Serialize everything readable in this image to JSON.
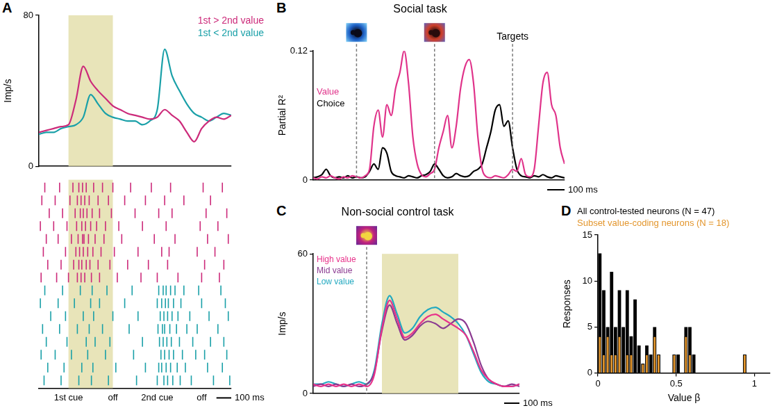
{
  "chart_data": [
    {
      "type": "line",
      "panel": "A",
      "y_label": "Imp/s",
      "x": [
        -200,
        -150,
        -100,
        -50,
        0,
        50,
        100,
        150,
        200,
        250,
        300,
        350,
        400,
        450,
        500,
        550,
        600,
        650,
        700,
        750,
        800,
        850,
        900,
        950,
        1000,
        1050,
        1100
      ],
      "series": [
        {
          "name": "1st > 2nd value",
          "color": "#cc2a7a",
          "values": [
            18,
            19,
            20,
            21,
            22,
            35,
            53,
            45,
            40,
            36,
            32,
            30,
            28,
            27,
            26,
            25,
            26,
            30,
            27,
            24,
            18,
            13,
            20,
            24,
            26,
            25,
            27
          ],
          "raster": [
            [
              -160,
              -60,
              30,
              70,
              95,
              120,
              170,
              230,
              300,
              420,
              560,
              690,
              910,
              1040
            ],
            [
              -180,
              -90,
              10,
              60,
              85,
              110,
              140,
              200,
              270,
              380,
              520,
              650,
              780,
              960
            ],
            [
              -130,
              -40,
              45,
              80,
              100,
              125,
              160,
              210,
              290,
              450,
              610,
              700,
              930,
              1070
            ],
            [
              -190,
              -100,
              -10,
              55,
              90,
              115,
              150,
              190,
              250,
              340,
              500,
              660,
              890,
              1010
            ],
            [
              -150,
              -70,
              20,
              65,
              95,
              105,
              135,
              180,
              240,
              360,
              580,
              720,
              940,
              1080
            ],
            [
              -170,
              -20,
              50,
              75,
              100,
              130,
              165,
              220,
              310,
              470,
              630,
              680,
              870,
              990
            ],
            [
              -140,
              -50,
              35,
              70,
              90,
              120,
              145,
              200,
              280,
              400,
              540,
              670,
              920,
              1050
            ],
            [
              -185,
              -80,
              0,
              60,
              85,
              110,
              155,
              210,
              330,
              490,
              600,
              740,
              900,
              1020
            ]
          ]
        },
        {
          "name": "1st < 2nd value",
          "color": "#1aa0a8",
          "values": [
            17,
            18,
            18,
            20,
            21,
            22,
            26,
            38,
            33,
            28,
            26,
            25,
            24,
            24,
            22,
            24,
            30,
            62,
            48,
            40,
            33,
            28,
            26,
            24,
            26,
            28,
            27
          ],
          "raster": [
            [
              -160,
              -40,
              80,
              160,
              260,
              430,
              610,
              640,
              660,
              690,
              720,
              780,
              880,
              1030
            ],
            [
              -190,
              -70,
              40,
              150,
              210,
              380,
              600,
              630,
              655,
              675,
              710,
              760,
              900,
              1060
            ],
            [
              -120,
              -20,
              100,
              170,
              300,
              470,
              620,
              645,
              670,
              700,
              740,
              820,
              950,
              1080
            ],
            [
              -175,
              -60,
              60,
              140,
              230,
              410,
              605,
              635,
              650,
              685,
              730,
              800,
              870,
              1010
            ],
            [
              -150,
              -10,
              120,
              180,
              280,
              500,
              615,
              640,
              665,
              695,
              750,
              840,
              960,
              1050
            ],
            [
              -185,
              -90,
              20,
              130,
              250,
              440,
              625,
              650,
              680,
              710,
              770,
              860,
              920,
              1070
            ],
            [
              -140,
              -30,
              90,
              165,
              320,
              520,
              610,
              630,
              660,
              690,
              735,
              790,
              940,
              1040
            ],
            [
              -165,
              -50,
              70,
              155,
              270,
              460,
              600,
              645,
              670,
              705,
              755,
              830,
              980,
              1090
            ]
          ]
        }
      ],
      "xlim": [
        -200,
        1100
      ],
      "xticks": [
        {
          "value": 0,
          "label": "1st cue"
        },
        {
          "value": 300,
          "label": "off"
        },
        {
          "value": 600,
          "label": "2nd cue"
        },
        {
          "value": 900,
          "label": "off"
        }
      ],
      "ylim": [
        0,
        80
      ],
      "yticks": [
        0,
        80
      ],
      "grid": false,
      "legend": "upper right",
      "shaded": [
        0,
        300
      ],
      "scale_bar": {
        "value": 100,
        "label": "100 ms"
      }
    },
    {
      "type": "line",
      "panel": "B",
      "title": "Social task",
      "y_label": "Partial R²",
      "x": [
        -250,
        -225,
        -200,
        -175,
        -150,
        -125,
        -100,
        -75,
        -50,
        -25,
        0,
        25,
        50,
        75,
        100,
        125,
        150,
        175,
        200,
        225,
        250,
        275,
        300,
        325,
        350,
        375,
        400,
        425,
        450,
        475,
        500,
        525,
        550,
        575,
        600,
        625,
        650,
        675,
        700,
        725,
        750,
        775,
        800,
        825,
        850,
        875,
        900,
        925,
        950,
        975,
        1000,
        1025,
        1050,
        1075,
        1100,
        1125,
        1150,
        1175,
        1200
      ],
      "series": [
        {
          "name": "Value",
          "color": "#e0338a",
          "values": [
            0.002,
            0.001,
            0.003,
            0.002,
            0.004,
            0.002,
            0.001,
            0.003,
            0.002,
            0.004,
            0.003,
            0.002,
            0.004,
            0.01,
            0.05,
            0.065,
            0.04,
            0.07,
            0.06,
            0.085,
            0.1,
            0.12,
            0.09,
            0.04,
            0.015,
            0.005,
            0.003,
            0.006,
            0.01,
            0.03,
            0.045,
            0.06,
            0.03,
            0.05,
            0.085,
            0.105,
            0.112,
            0.09,
            0.04,
            0.01,
            0.003,
            0.002,
            0.004,
            0.003,
            0.002,
            0.005,
            0.01,
            0.008,
            0.02,
            0.005,
            0.003,
            0.01,
            0.05,
            0.09,
            0.1,
            0.07,
            0.06,
            0.03,
            0.015
          ]
        },
        {
          "name": "Choice",
          "color": "#000000",
          "values": [
            0.002,
            0.003,
            0.005,
            0.01,
            0.004,
            0.002,
            0.003,
            0.002,
            0.004,
            0.002,
            0.003,
            0.002,
            0.003,
            0.008,
            0.015,
            0.01,
            0.03,
            0.025,
            0.008,
            0.004,
            0.003,
            0.002,
            0.004,
            0.003,
            0.002,
            0.004,
            0.005,
            0.008,
            0.015,
            0.01,
            0.004,
            0.002,
            0.003,
            0.006,
            0.004,
            0.003,
            0.004,
            0.008,
            0.01,
            0.015,
            0.03,
            0.045,
            0.065,
            0.07,
            0.05,
            0.055,
            0.03,
            0.01,
            0.004,
            0.003,
            0.002,
            0.004,
            0.003,
            0.005,
            0.003,
            0.002,
            0.004,
            0.003,
            0.002
          ]
        }
      ],
      "xlim": [
        -250,
        1200
      ],
      "ylim": [
        0,
        0.12
      ],
      "yticks": [
        0,
        0.12
      ],
      "tick_labels": "y",
      "grid": false,
      "legend": "left",
      "events": [
        {
          "value": 0
        },
        {
          "value": 450
        },
        {
          "value": 900,
          "label": "Targets"
        }
      ],
      "scale_bar": {
        "value": 100,
        "label": "100 ms"
      }
    },
    {
      "type": "line",
      "panel": "C",
      "title": "Non-social control task",
      "y_label": "Imp/s",
      "x": [
        -350,
        -300,
        -250,
        -200,
        -150,
        -100,
        -50,
        0,
        50,
        100,
        150,
        200,
        250,
        300,
        350,
        400,
        450,
        500,
        550,
        600,
        650,
        700,
        750,
        800,
        850,
        900,
        950,
        1000
      ],
      "series": [
        {
          "name": "High value",
          "color": "#e8318a",
          "values": [
            4,
            3,
            4,
            3,
            4,
            3,
            4,
            3,
            8,
            28,
            40,
            32,
            24,
            26,
            30,
            33,
            34,
            32,
            30,
            28,
            25,
            18,
            10,
            6,
            4,
            3,
            3,
            4
          ]
        },
        {
          "name": "Mid value",
          "color": "#8b3a91",
          "values": [
            3,
            4,
            3,
            4,
            3,
            4,
            3,
            4,
            9,
            27,
            38,
            30,
            23,
            25,
            29,
            31,
            30,
            28,
            30,
            32,
            30,
            22,
            12,
            6,
            4,
            3,
            4,
            3
          ]
        },
        {
          "name": "Low value",
          "color": "#22a9c0",
          "values": [
            4,
            4,
            5,
            4,
            3,
            4,
            5,
            4,
            10,
            30,
            42,
            34,
            26,
            28,
            33,
            36,
            37,
            35,
            33,
            30,
            25,
            17,
            9,
            5,
            4,
            3,
            3,
            4
          ]
        }
      ],
      "xlim": [
        -350,
        1000
      ],
      "ylim": [
        0,
        60
      ],
      "yticks": [
        0,
        60
      ],
      "tick_labels": "y",
      "grid": false,
      "legend": "upper left",
      "shaded": [
        100,
        600
      ],
      "events": [
        {
          "value": 0
        }
      ],
      "scale_bar": {
        "value": 100,
        "label": "100 ms"
      }
    },
    {
      "type": "histogram",
      "panel": "D",
      "x_label": "Value β",
      "y_label": "Responses",
      "bins": [
        0,
        0.025,
        0.05,
        0.075,
        0.1,
        0.125,
        0.15,
        0.175,
        0.2,
        0.225,
        0.25,
        0.275,
        0.3,
        0.325,
        0.35,
        0.375,
        0.4,
        0.425,
        0.45,
        0.475,
        0.5,
        0.525,
        0.55,
        0.575,
        0.6,
        0.625,
        0.65,
        0.675,
        0.7,
        0.725,
        0.75,
        0.775,
        0.8,
        0.825,
        0.85,
        0.875,
        0.9,
        0.925,
        0.95,
        0.975,
        1,
        1.025,
        1.05,
        1.075,
        1.1
      ],
      "series": [
        {
          "name": "All control-tested neurons (N = 47)",
          "color": "#000000",
          "values": [
            13,
            9,
            5,
            11,
            5,
            9,
            5,
            9,
            4,
            8,
            3,
            1,
            3,
            2,
            5,
            2,
            0,
            0,
            0,
            2,
            2,
            0,
            5,
            5,
            2,
            0,
            0,
            0,
            0,
            0,
            0,
            0,
            0,
            0,
            0,
            0,
            0,
            2,
            0,
            0,
            0,
            0,
            0,
            0
          ]
        },
        {
          "name": "Subset value-coding neurons (N = 18)",
          "color": "#e3962d",
          "values": [
            4,
            2,
            4,
            2,
            2,
            4,
            0,
            2,
            2,
            0,
            0,
            1,
            2,
            0,
            4,
            2,
            0,
            0,
            0,
            2,
            0,
            0,
            4,
            2,
            0,
            0,
            0,
            0,
            0,
            0,
            0,
            0,
            0,
            0,
            0,
            0,
            0,
            2,
            0,
            0,
            0,
            0,
            0,
            0
          ]
        }
      ],
      "xlim": [
        0,
        1.1
      ],
      "xticks": [
        0,
        0.5,
        1
      ],
      "ylim": [
        0,
        15
      ],
      "yticks": [
        0,
        5,
        10,
        15
      ],
      "grid": false,
      "legend": "top"
    }
  ]
}
